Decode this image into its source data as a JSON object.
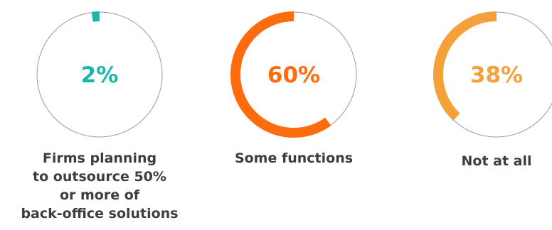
{
  "chart_data": [
    {
      "type": "pie",
      "value": 2,
      "label": "2%",
      "caption_lines": [
        "Firms planning",
        "to outsource 50%",
        "or more of",
        "back-office solutions"
      ],
      "color": "#1bb7a6"
    },
    {
      "type": "pie",
      "value": 60,
      "label": "60%",
      "caption_lines": [
        "Some functions"
      ],
      "color": "#ff6b0f"
    },
    {
      "type": "pie",
      "value": 38,
      "label": "38%",
      "caption_lines": [
        "Not at all"
      ],
      "color": "#f5a13a"
    }
  ],
  "colors": {
    "track": "#9a9a9a",
    "caption": "#3d3d3d"
  }
}
